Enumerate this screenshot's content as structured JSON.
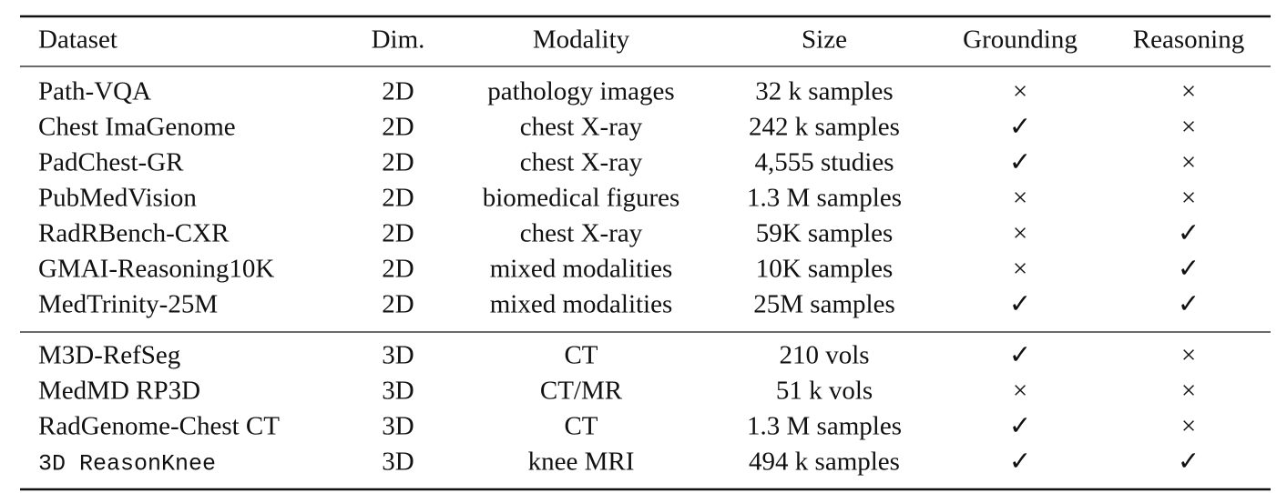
{
  "table": {
    "header": [
      "Dataset",
      "Dim.",
      "Modality",
      "Size",
      "Grounding",
      "Reasoning"
    ],
    "sections": [
      {
        "rows": [
          [
            "Path-VQA",
            "2D",
            "pathology images",
            "32 k samples",
            "×",
            "×"
          ],
          [
            "Chest ImaGenome",
            "2D",
            "chest X-ray",
            "242 k samples",
            "✓",
            "×"
          ],
          [
            "PadChest-GR",
            "2D",
            "chest X-ray",
            "4,555 studies",
            "✓",
            "×"
          ],
          [
            "PubMedVision",
            "2D",
            "biomedical figures",
            "1.3 M samples",
            "×",
            "×"
          ],
          [
            "RadRBench-CXR",
            "2D",
            "chest X-ray",
            "59K samples",
            "×",
            "✓"
          ],
          [
            "GMAI-Reasoning10K",
            "2D",
            "mixed modalities",
            "10K samples",
            "×",
            "✓"
          ],
          [
            "MedTrinity-25M",
            "2D",
            "mixed modalities",
            "25M samples",
            "✓",
            "✓"
          ]
        ]
      },
      {
        "rows": [
          [
            "M3D-RefSeg",
            "3D",
            "CT",
            "210 vols",
            "✓",
            "×"
          ],
          [
            "MedMD RP3D",
            "3D",
            "CT/MR",
            "51 k vols",
            "×",
            "×"
          ],
          [
            "RadGenome-Chest CT",
            "3D",
            "CT",
            "1.3 M samples",
            "✓",
            "×"
          ],
          [
            "3D ReasonKnee",
            "3D",
            "knee MRI",
            "494 k samples",
            "✓",
            "✓"
          ]
        ]
      }
    ]
  }
}
